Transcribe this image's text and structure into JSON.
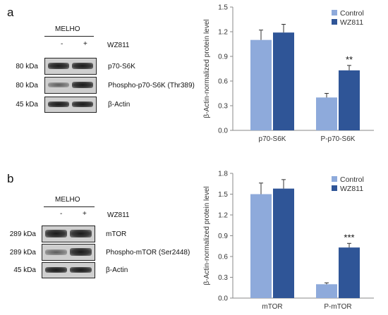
{
  "panels": [
    {
      "letter": "a",
      "group": "MELHO",
      "lane_signs": [
        "-",
        "+"
      ],
      "treatment": "WZ811",
      "blots": [
        {
          "kda": "80 kDa",
          "name": "p70-S6K"
        },
        {
          "kda": "80 kDa",
          "name": "Phospho-p70-S6K (Thr389)"
        },
        {
          "kda": "45 kDa",
          "name": "β-Actin"
        }
      ]
    },
    {
      "letter": "b",
      "group": "MELHO",
      "lane_signs": [
        "-",
        "+"
      ],
      "treatment": "WZ811",
      "blots": [
        {
          "kda": "289 kDa",
          "name": "mTOR"
        },
        {
          "kda": "289 kDa",
          "name": "Phospho-mTOR (Ser2448)"
        },
        {
          "kda": "45 kDa",
          "name": "β-Actin"
        }
      ]
    }
  ],
  "chart_data": [
    {
      "type": "bar",
      "ylabel": "β-Actin-normalized protein level",
      "xlabel": "",
      "categories": [
        "p70-S6K",
        "P-p70-S6K"
      ],
      "series": [
        {
          "name": "Control",
          "color": "#8eaadb",
          "values": [
            1.1,
            0.4
          ],
          "errors": [
            0.12,
            0.05
          ]
        },
        {
          "name": "WZ811",
          "color": "#2f5597",
          "values": [
            1.19,
            0.73
          ],
          "errors": [
            0.1,
            0.06
          ]
        }
      ],
      "annotations": [
        {
          "category": "P-p70-S6K",
          "series": "WZ811",
          "text": "**"
        }
      ],
      "ylim": [
        0,
        1.5
      ],
      "yticks": [
        "0.0",
        "0.3",
        "0.6",
        "0.9",
        "1.2",
        "1.5"
      ],
      "legend": "top-right",
      "grid": false
    },
    {
      "type": "bar",
      "ylabel": "β-Actin-normalized protein level",
      "xlabel": "",
      "categories": [
        "mTOR",
        "P-mTOR"
      ],
      "series": [
        {
          "name": "Control",
          "color": "#8eaadb",
          "values": [
            1.5,
            0.2
          ],
          "errors": [
            0.16,
            0.02
          ]
        },
        {
          "name": "WZ811",
          "color": "#2f5597",
          "values": [
            1.58,
            0.73
          ],
          "errors": [
            0.13,
            0.06
          ]
        }
      ],
      "annotations": [
        {
          "category": "P-mTOR",
          "series": "WZ811",
          "text": "***"
        }
      ],
      "ylim": [
        0,
        1.8
      ],
      "yticks": [
        "0.0",
        "0.3",
        "0.6",
        "0.9",
        "1.2",
        "1.5",
        "1.8"
      ],
      "legend": "top-right",
      "grid": false
    }
  ]
}
